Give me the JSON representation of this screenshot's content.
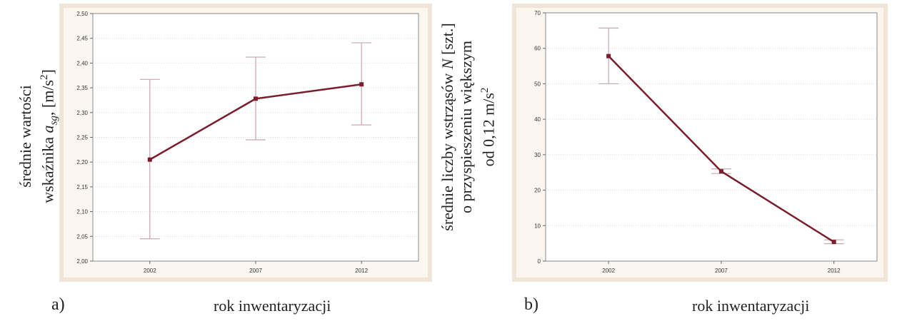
{
  "chart_data": [
    {
      "panel_letter": "a)",
      "type": "line",
      "xlabel": "rok inwentaryzacji",
      "ylabel_line1": "średnie wartości",
      "ylabel_line2_prefix": "wskaźnika ",
      "ylabel_symbol": "a",
      "ylabel_subscript": "sg",
      "ylabel_unit": ", [m/s",
      "ylabel_unit_sup": "2",
      "ylabel_unit_end": "]",
      "categories": [
        "2002",
        "2007",
        "2012"
      ],
      "ylim": [
        2.0,
        2.5
      ],
      "yticks": [
        "2,00",
        "2,05",
        "2,10",
        "2,15",
        "2,20",
        "2,25",
        "2,30",
        "2,35",
        "2,40",
        "2,45",
        "2,50"
      ],
      "series": [
        {
          "values": [
            2.205,
            2.328,
            2.357
          ],
          "error_low": [
            2.045,
            2.245,
            2.275
          ],
          "error_high": [
            2.367,
            2.412,
            2.441
          ]
        }
      ],
      "grid": true,
      "line_color": "#7a1e2e",
      "error_color": "#c9a7ad"
    },
    {
      "panel_letter": "b)",
      "type": "line",
      "xlabel": "rok inwentaryzacji",
      "ylabel_line1_prefix": "średnie liczby wstrząsów ",
      "ylabel_symbol": "N",
      "ylabel_line1_suffix": " [szt.]",
      "ylabel_line2": "o przyspieszeniu większym",
      "ylabel_line3": "od 0,12 m/s",
      "ylabel_line3_sup": "2",
      "categories": [
        "2002",
        "2007",
        "2012"
      ],
      "ylim": [
        0,
        70
      ],
      "yticks": [
        "0",
        "10",
        "20",
        "30",
        "40",
        "50",
        "60",
        "70"
      ],
      "series": [
        {
          "values": [
            57.8,
            25.3,
            5.4
          ],
          "error_low": [
            50.0,
            24.7,
            4.9
          ],
          "error_high": [
            65.7,
            26.0,
            6.0
          ]
        }
      ],
      "grid": true,
      "line_color": "#7a1e2e",
      "error_color": "#c9a7ad"
    }
  ]
}
